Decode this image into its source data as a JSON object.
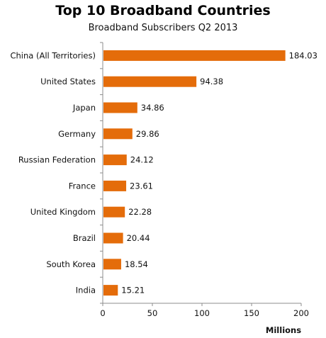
{
  "chart_data": {
    "type": "bar",
    "orientation": "horizontal",
    "title": "Top 10 Broadband Countries",
    "subtitle": "Broadband Subscribers Q2 2013",
    "xlabel": "Millions",
    "ylabel": "",
    "xlim": [
      0,
      200
    ],
    "ticks": [
      "0",
      "50",
      "100",
      "150",
      "200"
    ],
    "categories": [
      "China (All Territories)",
      "United States",
      "Japan",
      "Germany",
      "Russian Federation",
      "France",
      "United Kingdom",
      "Brazil",
      "South Korea",
      "India"
    ],
    "values": [
      184.03,
      94.38,
      34.86,
      29.86,
      24.12,
      23.61,
      22.28,
      20.44,
      18.54,
      15.21
    ],
    "value_labels": [
      "184.03",
      "94.38",
      "34.86",
      "29.86",
      "24.12",
      "23.61",
      "22.28",
      "20.44",
      "18.54",
      "15.21"
    ],
    "bar_color": "#E46C0A",
    "grid": false,
    "legend": "none"
  }
}
